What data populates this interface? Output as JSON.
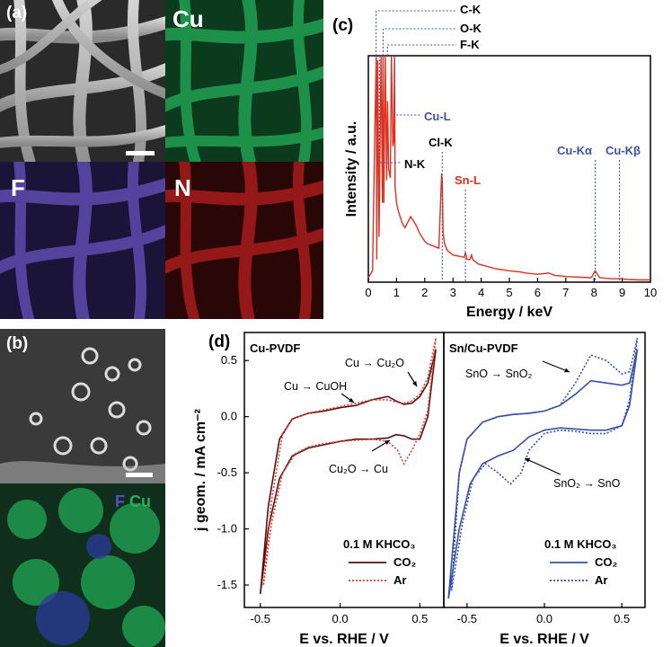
{
  "panels": {
    "a": {
      "label": "(a)",
      "maps": {
        "cu": "Cu",
        "f": "F",
        "n": "N"
      }
    },
    "b": {
      "label": "(b)",
      "overlay_f": "F",
      "overlay_cu": "Cu"
    },
    "c": {
      "label": "(c)"
    },
    "d": {
      "label": "(d)"
    }
  },
  "colors": {
    "cu_map": "#1f9a4e",
    "f_map": "#5b49a8",
    "n_map": "#a81c1c",
    "spectrum": "#e0301e",
    "blue_label": "#3d52a8",
    "cu_pvdf_co2": "#5a1010",
    "cu_pvdf_ar": "#e23b2b",
    "sn_cu_pvdf": "#3450a8"
  },
  "chart_data": [
    {
      "type": "line",
      "xlabel": "Energy / keV",
      "ylabel": "Intensity / a.u.",
      "xlim": [
        0,
        10
      ],
      "xticks": [
        0,
        1,
        2,
        3,
        4,
        5,
        6,
        7,
        8,
        9,
        10
      ],
      "series": [
        {
          "x": [
            0.0,
            0.15,
            0.22,
            0.28,
            0.3,
            0.33,
            0.38,
            0.45,
            0.5,
            0.52,
            0.55,
            0.6,
            0.65,
            0.68,
            0.72,
            0.78,
            0.82,
            0.87,
            0.9,
            0.93,
            0.95,
            1.0,
            1.05,
            1.1,
            1.2,
            1.3,
            1.5,
            1.7,
            1.8,
            1.9,
            2.0,
            2.1,
            2.3,
            2.5,
            2.6,
            2.62,
            2.65,
            2.7,
            2.8,
            3.0,
            3.4,
            3.44,
            3.5,
            3.6,
            3.66,
            3.7,
            3.9,
            4.5,
            5.0,
            5.4,
            5.6,
            6.0,
            6.4,
            6.6,
            7.0,
            7.5,
            7.9,
            8.04,
            8.2,
            8.6,
            8.9,
            9.2,
            9.6,
            10.0
          ],
          "y": [
            0.02,
            0.05,
            0.6,
            1.0,
            0.1,
            0.98,
            0.2,
            1.0,
            0.35,
            1.0,
            0.35,
            1.0,
            0.45,
            0.8,
            0.5,
            0.46,
            1.0,
            0.6,
            0.62,
            1.0,
            0.42,
            0.35,
            0.32,
            0.3,
            0.26,
            0.24,
            0.29,
            0.25,
            0.22,
            0.2,
            0.18,
            0.17,
            0.16,
            0.15,
            0.48,
            0.44,
            0.22,
            0.17,
            0.14,
            0.12,
            0.11,
            0.13,
            0.1,
            0.1,
            0.12,
            0.1,
            0.08,
            0.06,
            0.05,
            0.045,
            0.04,
            0.035,
            0.04,
            0.03,
            0.025,
            0.022,
            0.02,
            0.05,
            0.02,
            0.015,
            0.015,
            0.012,
            0.01,
            0.01
          ]
        }
      ],
      "annotations": [
        {
          "text": "C-K",
          "x": 0.277
        },
        {
          "text": "O-K",
          "x": 0.525
        },
        {
          "text": "F-K",
          "x": 0.677
        },
        {
          "text": "Cu-L",
          "x": 0.93
        },
        {
          "text": "N-K",
          "x": 0.39
        },
        {
          "text": "Cl-K",
          "x": 2.62
        },
        {
          "text": "Sn-L",
          "x": 3.44
        },
        {
          "text": "Cu-Kα",
          "x": 8.04
        },
        {
          "text": "Cu-Kβ",
          "x": 8.9
        }
      ]
    },
    {
      "type": "line",
      "xlabel": "E vs. RHE / V",
      "ylabel": "j geom. / mA cm⁻²",
      "ylim": [
        -1.7,
        0.75
      ],
      "yticks": [
        0.5,
        0.0,
        -0.5,
        -1.0,
        -1.5
      ],
      "ytick_labels": [
        "0.5",
        "0.0",
        "-0.5",
        "-1.0",
        "-1.5"
      ],
      "subplots": [
        {
          "title": "Cu-PVDF",
          "xlim": [
            -0.6,
            0.65
          ],
          "xticks": [
            -0.5,
            0.0,
            0.5
          ],
          "xtick_labels": [
            "-0.5",
            "0.0",
            "0.5"
          ],
          "electrolyte": "0.1 M KHCO₃",
          "series": [
            {
              "name": "CO₂",
              "style": "solid",
              "x": [
                -0.5,
                -0.45,
                -0.38,
                -0.3,
                -0.2,
                -0.1,
                0.0,
                0.1,
                0.2,
                0.3,
                0.35,
                0.4,
                0.45,
                0.5,
                0.55,
                0.6,
                0.55,
                0.5,
                0.45,
                0.4,
                0.35,
                0.3,
                0.2,
                0.1,
                0.0,
                -0.1,
                -0.2,
                -0.3,
                -0.38,
                -0.45,
                -0.5
              ],
              "y": [
                -1.58,
                -1.0,
                -0.55,
                -0.35,
                -0.28,
                -0.25,
                -0.22,
                -0.2,
                -0.2,
                -0.19,
                -0.16,
                -0.17,
                -0.2,
                -0.2,
                0.0,
                0.6,
                0.3,
                0.18,
                0.12,
                0.11,
                0.14,
                0.18,
                0.15,
                0.1,
                0.08,
                0.05,
                0.03,
                -0.02,
                -0.2,
                -0.8,
                -1.58
              ]
            },
            {
              "name": "Ar",
              "style": "dotted",
              "x": [
                -0.48,
                -0.43,
                -0.36,
                -0.28,
                -0.2,
                -0.1,
                0.0,
                0.1,
                0.2,
                0.3,
                0.36,
                0.4,
                0.45,
                0.5,
                0.55,
                0.6,
                0.55,
                0.5,
                0.45,
                0.4,
                0.35,
                0.3,
                0.2,
                0.1,
                0.0,
                -0.1,
                -0.2,
                -0.3,
                -0.36,
                -0.43,
                -0.48
              ],
              "y": [
                -1.5,
                -0.95,
                -0.5,
                -0.33,
                -0.27,
                -0.24,
                -0.22,
                -0.21,
                -0.2,
                -0.22,
                -0.3,
                -0.42,
                -0.3,
                -0.15,
                0.05,
                0.7,
                0.35,
                0.2,
                0.14,
                0.12,
                0.13,
                0.15,
                0.15,
                0.12,
                0.09,
                0.06,
                0.03,
                -0.02,
                -0.15,
                -0.75,
                -1.5
              ]
            }
          ]
        },
        {
          "title": "Sn/Cu-PVDF",
          "xlim": [
            -0.65,
            0.65
          ],
          "xticks": [
            -0.5,
            0.0,
            0.5
          ],
          "xtick_labels": [
            "-0.5",
            "0.0",
            "0.5"
          ],
          "electrolyte": "0.1 M KHCO₃",
          "series": [
            {
              "name": "CO₂",
              "style": "solid",
              "x": [
                -0.62,
                -0.55,
                -0.48,
                -0.4,
                -0.3,
                -0.2,
                -0.1,
                0.0,
                0.1,
                0.2,
                0.3,
                0.4,
                0.5,
                0.55,
                0.6,
                0.55,
                0.5,
                0.4,
                0.3,
                0.2,
                0.1,
                0.0,
                -0.1,
                -0.2,
                -0.3,
                -0.4,
                -0.5,
                -0.55,
                -0.62
              ],
              "y": [
                -1.62,
                -1.0,
                -0.6,
                -0.42,
                -0.35,
                -0.3,
                -0.18,
                -0.12,
                -0.1,
                -0.11,
                -0.12,
                -0.12,
                -0.08,
                0.1,
                0.6,
                0.3,
                0.28,
                0.3,
                0.32,
                0.2,
                0.1,
                0.05,
                0.03,
                0.02,
                0.0,
                -0.05,
                -0.2,
                -0.5,
                -1.62
              ]
            },
            {
              "name": "Ar",
              "style": "dotted",
              "x": [
                -0.6,
                -0.53,
                -0.46,
                -0.38,
                -0.3,
                -0.22,
                -0.15,
                -0.1,
                0.0,
                0.1,
                0.2,
                0.3,
                0.4,
                0.5,
                0.55,
                0.6,
                0.55,
                0.5,
                0.4,
                0.3,
                0.2,
                0.1,
                0.0,
                -0.1,
                -0.2,
                -0.3,
                -0.4,
                -0.5,
                -0.55,
                -0.6
              ],
              "y": [
                -1.55,
                -0.95,
                -0.55,
                -0.42,
                -0.5,
                -0.6,
                -0.5,
                -0.3,
                -0.15,
                -0.12,
                -0.13,
                -0.15,
                -0.15,
                -0.08,
                0.15,
                0.7,
                0.4,
                0.38,
                0.5,
                0.55,
                0.3,
                0.1,
                0.05,
                0.03,
                0.02,
                0.0,
                -0.05,
                -0.2,
                -0.5,
                -1.55
              ]
            }
          ]
        }
      ],
      "annotations": {
        "left": [
          {
            "text": "Cu → Cu₂O"
          },
          {
            "text": "Cu → CuOH"
          },
          {
            "text": "Cu₂O → Cu"
          }
        ],
        "right": [
          {
            "text": "SnO → SnO₂"
          },
          {
            "text": "SnO₂ → SnO"
          }
        ]
      }
    }
  ]
}
